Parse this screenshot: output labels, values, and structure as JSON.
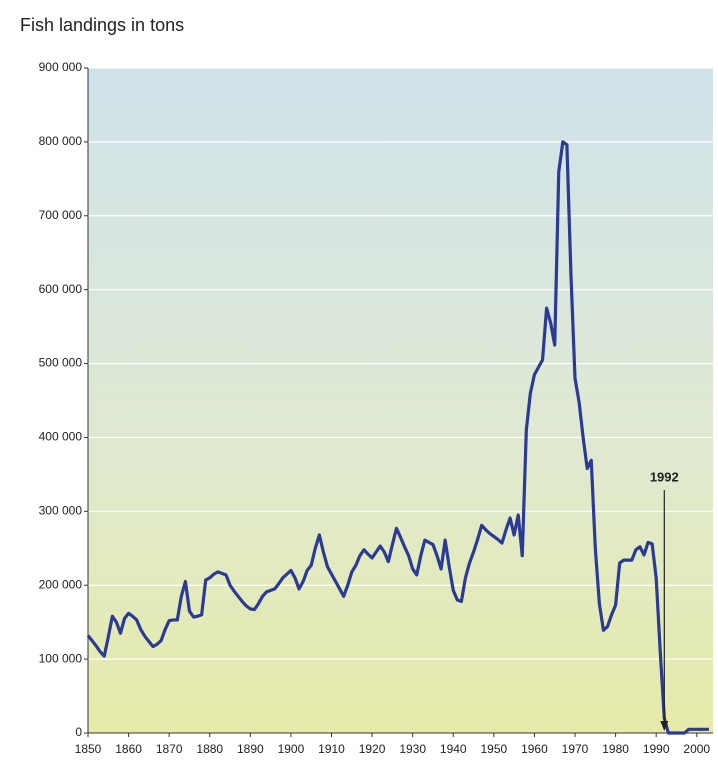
{
  "chart_data": {
    "type": "line",
    "title": "Fish landings in tons",
    "x": [
      1850,
      1851,
      1852,
      1853,
      1854,
      1855,
      1856,
      1857,
      1858,
      1859,
      1860,
      1861,
      1862,
      1863,
      1864,
      1865,
      1866,
      1867,
      1868,
      1869,
      1870,
      1871,
      1872,
      1873,
      1874,
      1875,
      1876,
      1877,
      1878,
      1879,
      1880,
      1881,
      1882,
      1883,
      1884,
      1885,
      1886,
      1887,
      1888,
      1889,
      1890,
      1891,
      1892,
      1893,
      1894,
      1895,
      1896,
      1897,
      1898,
      1899,
      1900,
      1901,
      1902,
      1903,
      1904,
      1905,
      1906,
      1907,
      1908,
      1909,
      1910,
      1911,
      1912,
      1913,
      1914,
      1915,
      1916,
      1917,
      1918,
      1919,
      1920,
      1921,
      1922,
      1923,
      1924,
      1925,
      1926,
      1927,
      1928,
      1929,
      1930,
      1931,
      1932,
      1933,
      1934,
      1935,
      1936,
      1937,
      1938,
      1939,
      1940,
      1941,
      1942,
      1943,
      1944,
      1945,
      1946,
      1947,
      1948,
      1949,
      1950,
      1951,
      1952,
      1953,
      1954,
      1955,
      1956,
      1957,
      1958,
      1959,
      1960,
      1961,
      1962,
      1963,
      1964,
      1965,
      1966,
      1967,
      1968,
      1969,
      1970,
      1971,
      1972,
      1973,
      1974,
      1975,
      1976,
      1977,
      1978,
      1979,
      1980,
      1981,
      1982,
      1983,
      1984,
      1985,
      1986,
      1987,
      1988,
      1989,
      1990,
      1991,
      1992,
      1993,
      1994,
      1995,
      1996,
      1997,
      1998,
      1999,
      2000,
      2001,
      2002,
      2003
    ],
    "series": [
      {
        "color": "#2b3a92",
        "values": [
          132000,
          125000,
          118000,
          110000,
          104000,
          130000,
          158000,
          150000,
          135000,
          155000,
          162000,
          158000,
          153000,
          140000,
          131000,
          124000,
          117000,
          120000,
          125000,
          140000,
          152000,
          153000,
          153000,
          185000,
          205000,
          165000,
          157000,
          158000,
          160000,
          207000,
          210000,
          215000,
          218000,
          216000,
          214000,
          200000,
          192000,
          185000,
          178000,
          172000,
          168000,
          167000,
          175000,
          185000,
          191000,
          193000,
          195000,
          202000,
          210000,
          215000,
          220000,
          210000,
          195000,
          205000,
          220000,
          227000,
          250000,
          268000,
          245000,
          225000,
          215000,
          205000,
          195000,
          185000,
          200000,
          218000,
          227000,
          240000,
          248000,
          242000,
          237000,
          245000,
          253000,
          245000,
          232000,
          255000,
          277000,
          265000,
          252000,
          240000,
          222000,
          214000,
          240000,
          261000,
          258000,
          255000,
          240000,
          222000,
          261000,
          225000,
          193000,
          180000,
          178000,
          210000,
          230000,
          245000,
          262000,
          281000,
          275000,
          270000,
          266000,
          262000,
          257000,
          275000,
          291000,
          268000,
          295000,
          240000,
          410000,
          460000,
          485000,
          495000,
          505000,
          575000,
          555000,
          525000,
          760000,
          800000,
          796000,
          620000,
          480000,
          448000,
          400000,
          358000,
          369000,
          250000,
          175000,
          139000,
          144000,
          160000,
          173000,
          230000,
          234000,
          234000,
          234000,
          248000,
          252000,
          241000,
          258000,
          256000,
          210000,
          110000,
          20000,
          0,
          0,
          0,
          0,
          0,
          5000,
          5000,
          5000,
          5000,
          5000,
          5000
        ]
      }
    ],
    "xlim": [
      1850,
      2004
    ],
    "ylim": [
      0,
      900000
    ],
    "xticks": [
      1850,
      1860,
      1870,
      1880,
      1890,
      1900,
      1910,
      1920,
      1930,
      1940,
      1950,
      1960,
      1970,
      1980,
      1990,
      2000
    ],
    "yticks": [
      0,
      {
        "value": 100000,
        "label": "100 000"
      },
      {
        "value": 200000,
        "label": "200 000"
      },
      {
        "value": 300000,
        "label": "300 000"
      },
      {
        "value": 400000,
        "label": "400 000"
      },
      {
        "value": 500000,
        "label": "500 000"
      },
      {
        "value": 600000,
        "label": "600 000"
      },
      {
        "value": 700000,
        "label": "700 000"
      },
      {
        "value": 800000,
        "label": "800 000"
      },
      {
        "value": 900000,
        "label": "900 000"
      }
    ],
    "grid": true,
    "annotation": {
      "label": "1992",
      "x": 1992
    }
  }
}
